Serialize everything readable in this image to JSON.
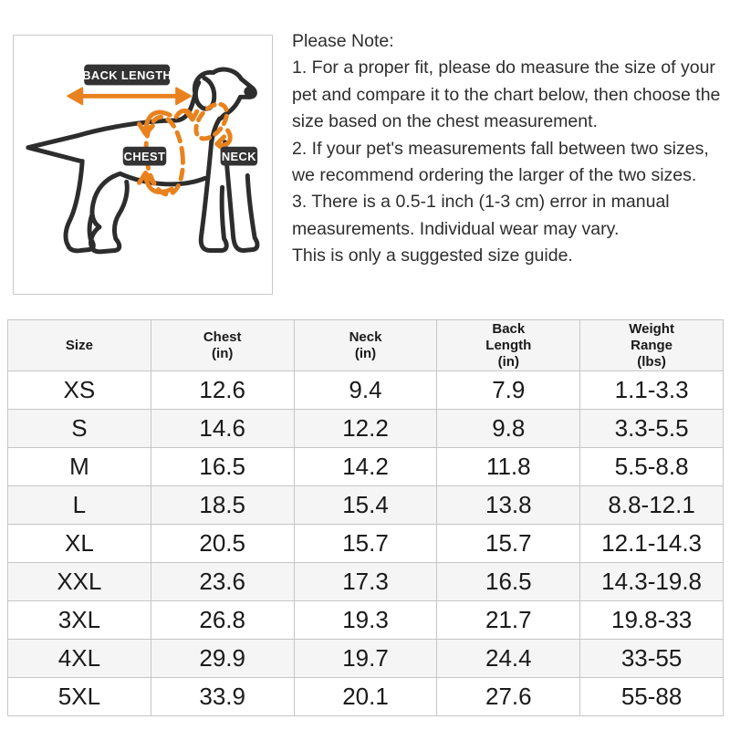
{
  "diagram": {
    "labels": {
      "back_length": "BACK LENGTH",
      "chest": "CHEST",
      "neck": "NECK"
    },
    "colors": {
      "accent_orange": "#e8821e",
      "label_background": "#333333",
      "dog_outline": "#2d2d2d",
      "box_border": "#c9c9c9"
    }
  },
  "notes": {
    "title": "Please Note:",
    "items": [
      "1. For a proper fit, please do measure the size of your pet and compare it to the chart below, then choose the size based on the chest measurement.",
      "2. If your pet's measurements fall between two sizes, we recommend ordering the larger of the two sizes.",
      "3. There is a 0.5-1 inch (1-3 cm) error in manual measurements. Individual wear may vary.",
      "This is only a suggested size guide."
    ]
  },
  "table": {
    "headers": [
      "Size",
      "Chest\n(in)",
      "Neck\n(in)",
      "Back\nLength\n(in)",
      "Weight\nRange\n(lbs)"
    ],
    "rows": [
      [
        "XS",
        "12.6",
        "9.4",
        "7.9",
        "1.1-3.3"
      ],
      [
        "S",
        "14.6",
        "12.2",
        "9.8",
        "3.3-5.5"
      ],
      [
        "M",
        "16.5",
        "14.2",
        "11.8",
        "5.5-8.8"
      ],
      [
        "L",
        "18.5",
        "15.4",
        "13.8",
        "8.8-12.1"
      ],
      [
        "XL",
        "20.5",
        "15.7",
        "15.7",
        "12.1-14.3"
      ],
      [
        "XXL",
        "23.6",
        "17.3",
        "16.5",
        "14.3-19.8"
      ],
      [
        "3XL",
        "26.8",
        "19.3",
        "21.7",
        "19.8-33"
      ],
      [
        "4XL",
        "29.9",
        "19.7",
        "24.4",
        "33-55"
      ],
      [
        "5XL",
        "33.9",
        "20.1",
        "27.6",
        "55-88"
      ]
    ],
    "style": {
      "header_background": "#f5f5f5",
      "stripe_background": "#f5f5f5",
      "border_color": "#c6c6c6"
    }
  },
  "chart_data": {
    "type": "table",
    "columns": [
      "Size",
      "Chest (in)",
      "Neck (in)",
      "Back Length (in)",
      "Weight Range (lbs)"
    ],
    "rows": [
      [
        "XS",
        12.6,
        9.4,
        7.9,
        "1.1-3.3"
      ],
      [
        "S",
        14.6,
        12.2,
        9.8,
        "3.3-5.5"
      ],
      [
        "M",
        16.5,
        14.2,
        11.8,
        "5.5-8.8"
      ],
      [
        "L",
        18.5,
        15.4,
        13.8,
        "8.8-12.1"
      ],
      [
        "XL",
        20.5,
        15.7,
        15.7,
        "12.1-14.3"
      ],
      [
        "XXL",
        23.6,
        17.3,
        16.5,
        "14.3-19.8"
      ],
      [
        "3XL",
        26.8,
        19.3,
        21.7,
        "19.8-33"
      ],
      [
        "4XL",
        29.9,
        19.7,
        24.4,
        "33-55"
      ],
      [
        "5XL",
        33.9,
        20.1,
        27.6,
        "55-88"
      ]
    ]
  }
}
